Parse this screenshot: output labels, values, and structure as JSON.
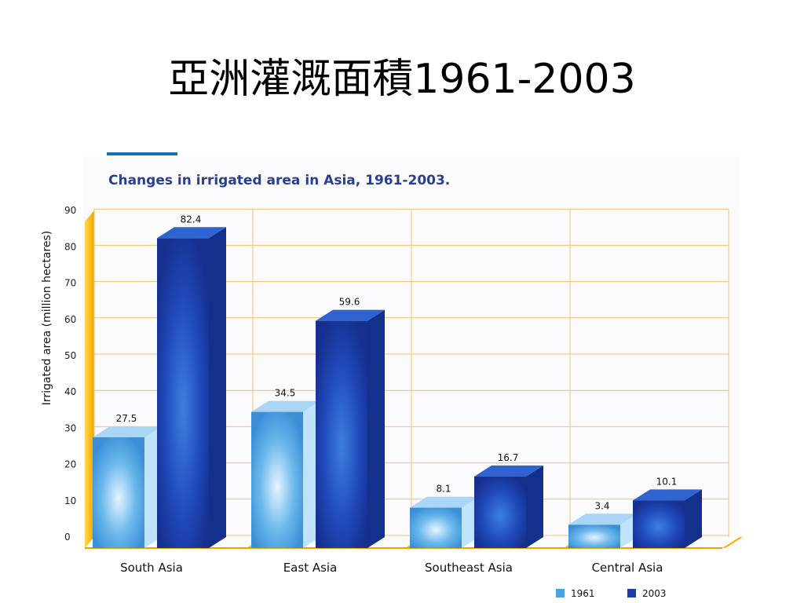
{
  "slide": {
    "title": "亞洲灌溉面積1961-2003"
  },
  "chart_data": {
    "type": "bar",
    "title": "Changes in irrigated area in Asia, 1961-2003.",
    "ylabel": "Irrigated area (million hectares)",
    "xlabel": "",
    "ylim": [
      0,
      90
    ],
    "yticks": [
      0,
      10,
      20,
      30,
      40,
      50,
      60,
      70,
      80,
      90
    ],
    "grid": true,
    "legend": "bottom-right",
    "categories": [
      "South Asia",
      "East Asia",
      "Southeast Asia",
      "Central Asia"
    ],
    "series": [
      {
        "name": "1961",
        "values": [
          27.5,
          34.5,
          8.1,
          3.4
        ],
        "labels": [
          "27.5",
          "34.5",
          "8.1",
          "3.4"
        ],
        "color": "#4aa3e0"
      },
      {
        "name": "2003",
        "values": [
          82.4,
          59.6,
          16.7,
          10.1
        ],
        "labels": [
          "82.4",
          "59.6",
          "16.7",
          "10.1"
        ],
        "color": "#1a3fa8"
      }
    ],
    "colors": {
      "title": "#2a3f8f",
      "grid": "#f0c070",
      "wall": "#f7b500"
    }
  }
}
